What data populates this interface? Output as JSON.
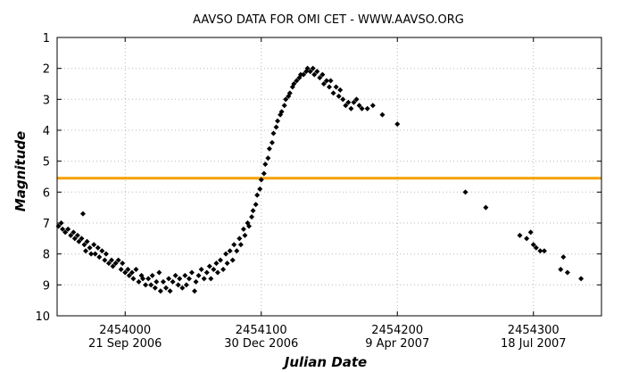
{
  "chart_data": {
    "type": "scatter",
    "title": "AAVSO DATA FOR OMI CET - WWW.AAVSO.ORG",
    "xlabel": "Julian Date",
    "ylabel": "Magnitude",
    "xlim": [
      2453950,
      2454350
    ],
    "ylim": [
      1,
      10
    ],
    "y_inverted": true,
    "grid": true,
    "x_ticks": [
      2454000,
      2454100,
      2454200,
      2454300
    ],
    "x_tick_labels": [
      "2454000",
      "2454100",
      "2454200",
      "2454300"
    ],
    "x_date_ticks": [
      2454000,
      2454100,
      2454200,
      2454300
    ],
    "x_date_labels": [
      "21 Sep 2006",
      "30 Dec 2006",
      "9 Apr 2007",
      "18 Jul 2007"
    ],
    "y_ticks": [
      1,
      2,
      3,
      4,
      5,
      6,
      7,
      8,
      9,
      10
    ],
    "y_tick_labels": [
      "1",
      "2",
      "3",
      "4",
      "5",
      "6",
      "7",
      "8",
      "9",
      "10"
    ],
    "reference_line": {
      "y": 5.55,
      "color": "#f5a000"
    },
    "marker_color": "#000000",
    "series": [
      {
        "points": [
          [
            2453951,
            7.1
          ],
          [
            2453953,
            7.0
          ],
          [
            2453954,
            7.2
          ],
          [
            2453956,
            7.3
          ],
          [
            2453958,
            7.2
          ],
          [
            2453960,
            7.4
          ],
          [
            2453962,
            7.3
          ],
          [
            2453963,
            7.5
          ],
          [
            2453965,
            7.4
          ],
          [
            2453966,
            7.6
          ],
          [
            2453968,
            7.5
          ],
          [
            2453969,
            6.7
          ],
          [
            2453970,
            7.7
          ],
          [
            2453971,
            7.9
          ],
          [
            2453972,
            7.6
          ],
          [
            2453974,
            7.8
          ],
          [
            2453975,
            8.0
          ],
          [
            2453977,
            7.7
          ],
          [
            2453978,
            8.0
          ],
          [
            2453980,
            7.8
          ],
          [
            2453981,
            8.1
          ],
          [
            2453983,
            7.9
          ],
          [
            2453985,
            8.2
          ],
          [
            2453986,
            8.0
          ],
          [
            2453988,
            8.3
          ],
          [
            2453990,
            8.2
          ],
          [
            2453991,
            8.4
          ],
          [
            2453993,
            8.3
          ],
          [
            2453995,
            8.2
          ],
          [
            2453997,
            8.5
          ],
          [
            2453998,
            8.3
          ],
          [
            2454000,
            8.6
          ],
          [
            2454002,
            8.5
          ],
          [
            2454003,
            8.7
          ],
          [
            2454005,
            8.6
          ],
          [
            2454006,
            8.8
          ],
          [
            2454008,
            8.5
          ],
          [
            2454010,
            8.9
          ],
          [
            2454012,
            8.7
          ],
          [
            2454013,
            8.8
          ],
          [
            2454015,
            9.0
          ],
          [
            2454017,
            8.8
          ],
          [
            2454019,
            9.0
          ],
          [
            2454020,
            8.7
          ],
          [
            2454022,
            9.1
          ],
          [
            2454023,
            8.9
          ],
          [
            2454025,
            8.6
          ],
          [
            2454026,
            9.2
          ],
          [
            2454028,
            8.9
          ],
          [
            2454030,
            9.1
          ],
          [
            2454032,
            8.8
          ],
          [
            2454033,
            9.2
          ],
          [
            2454035,
            8.9
          ],
          [
            2454037,
            8.7
          ],
          [
            2454039,
            9.0
          ],
          [
            2454040,
            8.8
          ],
          [
            2454042,
            9.1
          ],
          [
            2454044,
            8.7
          ],
          [
            2454045,
            9.0
          ],
          [
            2454047,
            8.8
          ],
          [
            2454049,
            8.6
          ],
          [
            2454051,
            9.2
          ],
          [
            2454052,
            8.9
          ],
          [
            2454054,
            8.7
          ],
          [
            2454056,
            8.5
          ],
          [
            2454058,
            8.8
          ],
          [
            2454060,
            8.6
          ],
          [
            2454062,
            8.4
          ],
          [
            2454063,
            8.8
          ],
          [
            2454065,
            8.5
          ],
          [
            2454067,
            8.3
          ],
          [
            2454068,
            8.6
          ],
          [
            2454070,
            8.2
          ],
          [
            2454072,
            8.5
          ],
          [
            2454074,
            8.0
          ],
          [
            2454075,
            8.3
          ],
          [
            2454077,
            7.9
          ],
          [
            2454079,
            8.2
          ],
          [
            2454080,
            7.7
          ],
          [
            2454082,
            7.9
          ],
          [
            2454084,
            7.5
          ],
          [
            2454085,
            7.7
          ],
          [
            2454087,
            7.2
          ],
          [
            2454088,
            7.4
          ],
          [
            2454090,
            7.0
          ],
          [
            2454091,
            7.1
          ],
          [
            2454093,
            6.8
          ],
          [
            2454094,
            6.6
          ],
          [
            2454096,
            6.4
          ],
          [
            2454097,
            6.1
          ],
          [
            2454099,
            5.9
          ],
          [
            2454100,
            5.6
          ],
          [
            2454102,
            5.4
          ],
          [
            2454103,
            5.1
          ],
          [
            2454105,
            4.9
          ],
          [
            2454106,
            4.6
          ],
          [
            2454108,
            4.4
          ],
          [
            2454109,
            4.1
          ],
          [
            2454111,
            3.9
          ],
          [
            2454112,
            3.7
          ],
          [
            2454114,
            3.5
          ],
          [
            2454115,
            3.4
          ],
          [
            2454117,
            3.2
          ],
          [
            2454118,
            3.0
          ],
          [
            2454120,
            2.9
          ],
          [
            2454121,
            2.8
          ],
          [
            2454123,
            2.6
          ],
          [
            2454124,
            2.5
          ],
          [
            2454126,
            2.4
          ],
          [
            2454128,
            2.3
          ],
          [
            2454129,
            2.2
          ],
          [
            2454131,
            2.2
          ],
          [
            2454133,
            2.1
          ],
          [
            2454134,
            2.0
          ],
          [
            2454136,
            2.1
          ],
          [
            2454138,
            2.0
          ],
          [
            2454139,
            2.2
          ],
          [
            2454141,
            2.1
          ],
          [
            2454143,
            2.3
          ],
          [
            2454145,
            2.2
          ],
          [
            2454146,
            2.5
          ],
          [
            2454148,
            2.4
          ],
          [
            2454150,
            2.6
          ],
          [
            2454151,
            2.4
          ],
          [
            2454153,
            2.8
          ],
          [
            2454155,
            2.6
          ],
          [
            2454157,
            2.9
          ],
          [
            2454158,
            2.7
          ],
          [
            2454160,
            3.0
          ],
          [
            2454162,
            3.2
          ],
          [
            2454164,
            3.1
          ],
          [
            2454166,
            3.3
          ],
          [
            2454168,
            3.1
          ],
          [
            2454170,
            3.0
          ],
          [
            2454172,
            3.2
          ],
          [
            2454174,
            3.3
          ],
          [
            2454178,
            3.3
          ],
          [
            2454182,
            3.2
          ],
          [
            2454189,
            3.5
          ],
          [
            2454200,
            3.8
          ],
          [
            2454250,
            6.0
          ],
          [
            2454265,
            6.5
          ],
          [
            2454290,
            7.4
          ],
          [
            2454295,
            7.5
          ],
          [
            2454298,
            7.3
          ],
          [
            2454300,
            7.7
          ],
          [
            2454302,
            7.8
          ],
          [
            2454305,
            7.9
          ],
          [
            2454308,
            7.9
          ],
          [
            2454320,
            8.5
          ],
          [
            2454322,
            8.1
          ],
          [
            2454325,
            8.6
          ],
          [
            2454335,
            8.8
          ]
        ]
      }
    ]
  }
}
